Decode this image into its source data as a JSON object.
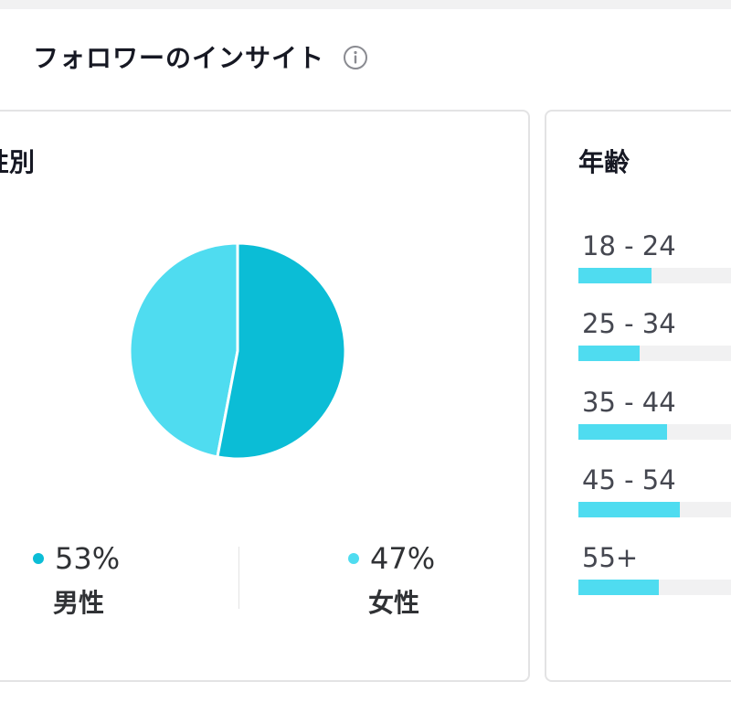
{
  "section": {
    "title": "フォロワーのインサイト",
    "info_icon": "info-icon"
  },
  "gender": {
    "title": "性別",
    "male": {
      "percent_label": "53%",
      "label": "男性",
      "value": 53,
      "color": "#0bbdd6"
    },
    "female": {
      "percent_label": "47%",
      "label": "女性",
      "value": 47,
      "color": "#4fdcf0"
    }
  },
  "age": {
    "title": "年齢",
    "bar_color": "#4fdcf0",
    "groups": [
      {
        "label": "18 - 24",
        "value": 0.38
      },
      {
        "label": "25 - 34",
        "value": 0.32
      },
      {
        "label": "35 - 44",
        "value": 0.46
      },
      {
        "label": "45 - 54",
        "value": 0.53
      },
      {
        "label": "55+",
        "value": 0.42
      }
    ]
  }
}
